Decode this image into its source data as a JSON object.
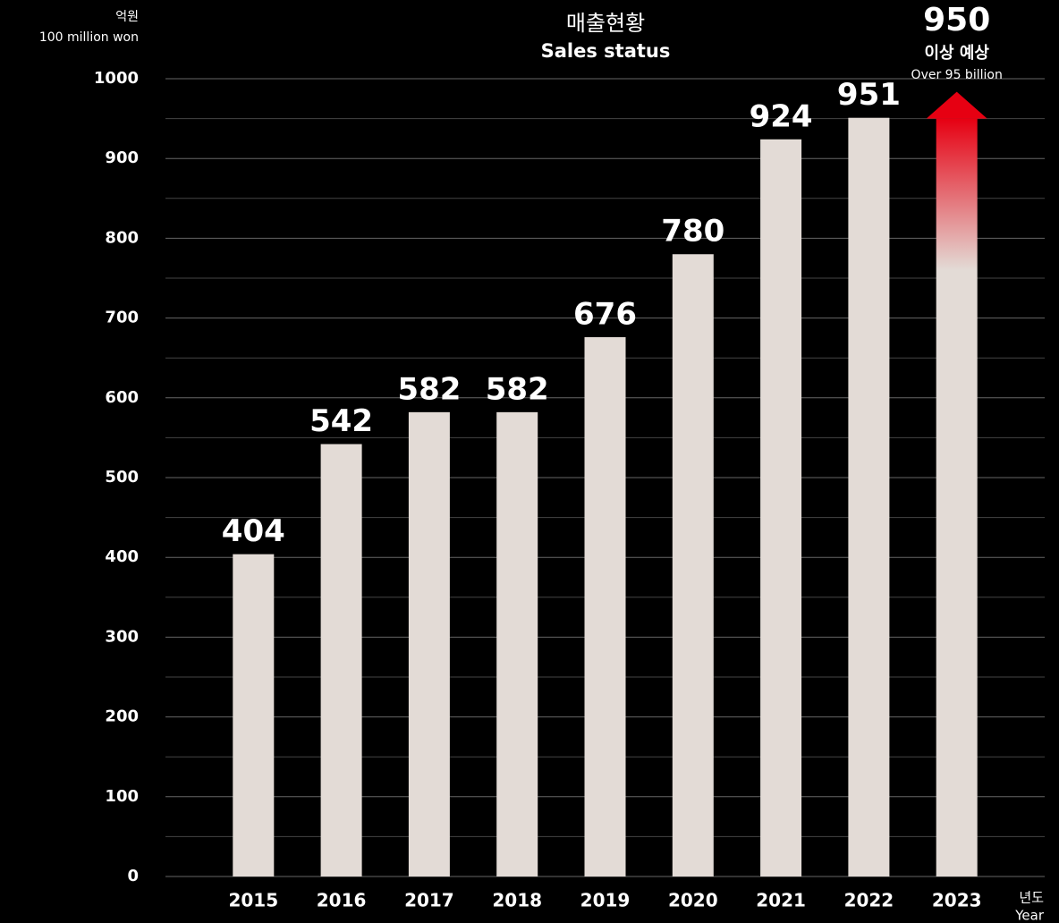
{
  "chart_data": {
    "type": "bar",
    "title": "매출현황",
    "subtitle": "Sales status",
    "y_axis_label": [
      "억원",
      "100 million won"
    ],
    "x_axis_label": [
      "년도",
      "Year"
    ],
    "categories": [
      "2015",
      "2016",
      "2017",
      "2018",
      "2019",
      "2020",
      "2021",
      "2022",
      "2023"
    ],
    "values": [
      404,
      542,
      582,
      582,
      676,
      780,
      924,
      951,
      950
    ],
    "annotation": [
      "이상 예상",
      "Over 95 billion"
    ],
    "color": "#e3dbd6",
    "forecast_color": "#e60012",
    "ylim": [
      0,
      1000
    ],
    "yticks": [
      0,
      100,
      200,
      300,
      400,
      500,
      600,
      700,
      800,
      900,
      1000
    ],
    "minor_yticks": [
      50,
      150,
      250,
      350,
      450,
      550,
      650,
      750,
      850,
      950
    ],
    "grid": true
  }
}
